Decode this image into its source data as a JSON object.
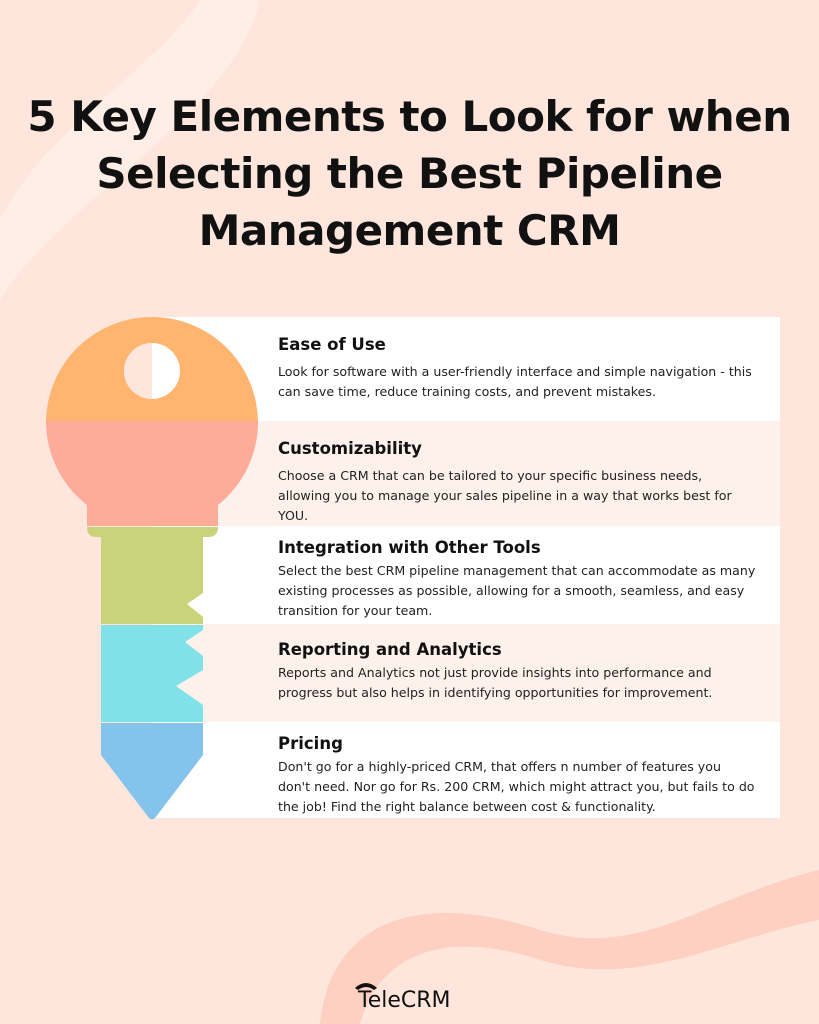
{
  "title": "5 Key Elements to Look for when Selecting the Best Pipeline Management CRM",
  "items": [
    {
      "heading": "Ease of Use",
      "text": "Look for software with a user-friendly interface and simple navigation - this can save time, reduce training costs, and prevent mistakes.",
      "color": "#ffb570"
    },
    {
      "heading": "Customizability",
      "text": "Choose a CRM that can be tailored to your specific business needs, allowing you to manage your sales pipeline in a way that works best for YOU.",
      "color": "#ffab9a"
    },
    {
      "heading": "Integration with Other Tools",
      "text": "Select the best CRM pipeline management that can accommodate as many existing processes as possible, allowing for a smooth, seamless, and easy transition for your team.",
      "color": "#c9d379"
    },
    {
      "heading": "Reporting and Analytics",
      "text": "Reports and Analytics not just provide insights into performance and progress but also helps in identifying opportunities for improvement.",
      "color": "#81e1e8"
    },
    {
      "heading": "Pricing",
      "text": "Don't go for a highly-priced CRM, that offers n number of features you don't need. Nor go for Rs. 200 CRM, which might attract you, but fails to do the job! Find the right balance between cost & functionality.",
      "color": "#84c3ec"
    }
  ],
  "logo": {
    "text": "TeleCRM",
    "icon": "telephone-icon"
  }
}
